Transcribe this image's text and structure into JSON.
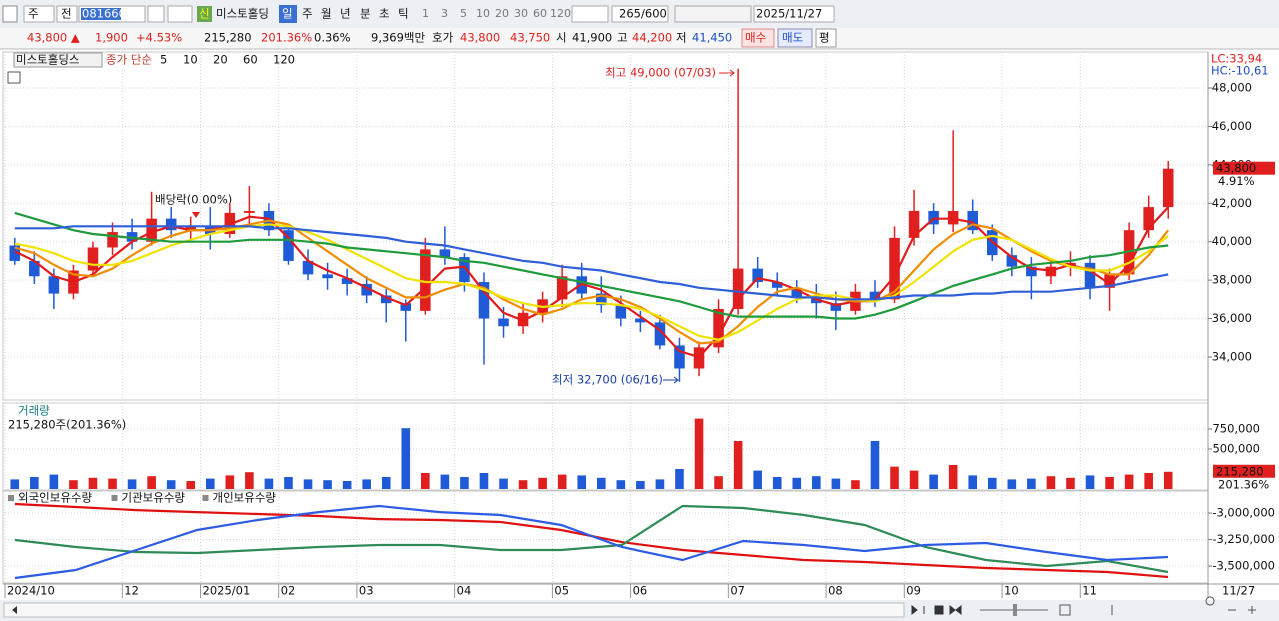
{
  "toolbar": {
    "market": "주",
    "exchange": "전",
    "code": "081660",
    "badge": "신",
    "name": "미스토홀딩",
    "periods": [
      "일",
      "주",
      "월",
      "년",
      "분",
      "초",
      "틱"
    ],
    "intervals": [
      "1",
      "3",
      "5",
      "10",
      "20",
      "30",
      "60",
      "120"
    ],
    "count": "265",
    "max": "/600",
    "date": "2025/11/27"
  },
  "quote_bar": {
    "price": "43,800 ▲",
    "change": "1,900",
    "change_pct": "+4.53%",
    "volume": "215,280",
    "volume_ratio": "201.36%",
    "turnover": "0.36%",
    "amount": "9,369백만",
    "ask_label": "호가",
    "ask": "43,800",
    "bid": "43,750",
    "open_label": "시",
    "open": "41,900",
    "high_label": "고",
    "high": "44,200",
    "low_label": "저",
    "low": "41,450",
    "buy": "매수",
    "sell": "매도",
    "avg": "평"
  },
  "chart_data": [
    {
      "type": "candlestick",
      "title": "미스토홀딩스",
      "legend_label": "종가 단순",
      "categories": [
        "2024/10",
        null,
        null,
        null,
        null,
        null,
        "12",
        null,
        null,
        null,
        "2025/01",
        null,
        null,
        null,
        "02",
        null,
        null,
        null,
        "03",
        null,
        null,
        null,
        null,
        "04",
        null,
        null,
        null,
        null,
        "05",
        null,
        null,
        null,
        "06",
        null,
        null,
        null,
        null,
        "07",
        null,
        null,
        null,
        null,
        "08",
        null,
        null,
        null,
        "09",
        null,
        null,
        null,
        null,
        "10",
        null,
        null,
        null,
        "11",
        null,
        null,
        null,
        null
      ],
      "open": [
        39800,
        39000,
        38200,
        37300,
        38500,
        39700,
        40500,
        40000,
        41200,
        40600,
        40800,
        40400,
        41500,
        41600,
        40600,
        39000,
        38300,
        38100,
        37800,
        37200,
        36800,
        36400,
        39600,
        39200,
        37900,
        36000,
        35600,
        36300,
        37000,
        38200,
        37300,
        36700,
        36000,
        35800,
        34600,
        33400,
        34500,
        36500,
        38600,
        37900,
        37600,
        37100,
        36800,
        36400,
        37400,
        37000,
        40200,
        41600,
        40900,
        41600,
        40600,
        39300,
        38700,
        38200,
        38700,
        38900,
        37600,
        38300,
        40600,
        41800
      ],
      "high": [
        40200,
        39500,
        38600,
        38800,
        40000,
        41000,
        41200,
        42600,
        41800,
        41300,
        41800,
        42000,
        42900,
        42000,
        40800,
        39600,
        38900,
        38600,
        38200,
        37600,
        37000,
        40200,
        40800,
        39400,
        38400,
        36600,
        36800,
        37400,
        38800,
        38900,
        38200,
        37200,
        36400,
        36200,
        35000,
        34800,
        37000,
        49000,
        39200,
        38400,
        38000,
        37800,
        37400,
        37800,
        38000,
        40800,
        42700,
        42000,
        45800,
        42200,
        40900,
        39700,
        39200,
        39000,
        39500,
        39300,
        38600,
        41000,
        42400,
        44200
      ],
      "low": [
        38800,
        37800,
        36500,
        37000,
        38200,
        39300,
        39600,
        39800,
        40200,
        40000,
        39600,
        40200,
        40800,
        40300,
        38800,
        38000,
        37500,
        37200,
        36800,
        35800,
        34800,
        36200,
        38800,
        37400,
        33600,
        35000,
        35200,
        35800,
        36600,
        37000,
        36300,
        35600,
        35300,
        34400,
        32700,
        33000,
        34200,
        36200,
        37600,
        37200,
        36800,
        36000,
        35400,
        36200,
        36600,
        36800,
        39800,
        40400,
        40500,
        40400,
        39000,
        38200,
        37000,
        37800,
        38200,
        37000,
        36400,
        38000,
        40200,
        41200
      ],
      "close": [
        39000,
        38200,
        37300,
        38500,
        39700,
        40500,
        40000,
        41200,
        40600,
        40800,
        40400,
        41500,
        41600,
        40600,
        39000,
        38300,
        38100,
        37800,
        37200,
        36800,
        36400,
        39600,
        39200,
        37900,
        36000,
        35600,
        36300,
        37000,
        38200,
        37300,
        36700,
        36000,
        35800,
        34600,
        33400,
        34500,
        36500,
        38600,
        37900,
        37600,
        37100,
        36800,
        36400,
        37400,
        37000,
        40200,
        41600,
        40900,
        41600,
        40600,
        39300,
        38700,
        38200,
        38700,
        38900,
        37600,
        38300,
        40600,
        41800,
        43800
      ],
      "up_color": "#e0201e",
      "down_color": "#1f5bd6",
      "series": [
        {
          "name": "5",
          "color": "#e31a1c",
          "values": [
            39500,
            39000,
            38200,
            37900,
            38300,
            39200,
            40000,
            40500,
            40800,
            40600,
            40600,
            40900,
            41300,
            41200,
            40200,
            39000,
            38500,
            38100,
            37600,
            37100,
            36700,
            37600,
            38600,
            38700,
            37400,
            36300,
            35900,
            36400,
            37100,
            37800,
            37500,
            36800,
            36100,
            35400,
            34300,
            34000,
            35100,
            37000,
            38100,
            37900,
            37500,
            37000,
            36700,
            36900,
            37000,
            38200,
            40300,
            41200,
            41200,
            41000,
            40000,
            39200,
            38600,
            38500,
            38800,
            38500,
            37800,
            38800,
            40700,
            41800
          ]
        },
        {
          "name": "10",
          "color": "#f08c00",
          "values": [
            39700,
            39400,
            38800,
            38300,
            38200,
            38600,
            39300,
            39900,
            40300,
            40600,
            40600,
            40700,
            40900,
            41100,
            40900,
            40200,
            39500,
            38800,
            38100,
            37600,
            37100,
            37100,
            37500,
            37800,
            37600,
            37000,
            36500,
            36200,
            36500,
            37000,
            37200,
            37000,
            36600,
            36000,
            35300,
            34700,
            34800,
            35600,
            36600,
            37400,
            37600,
            37300,
            37000,
            36900,
            36900,
            37400,
            38500,
            39600,
            40400,
            40900,
            40700,
            40100,
            39500,
            39000,
            38700,
            38600,
            38300,
            38300,
            39300,
            40600
          ]
        },
        {
          "name": "20",
          "color": "#f2e200",
          "values": [
            39900,
            39700,
            39400,
            39000,
            38800,
            38800,
            39000,
            39400,
            39800,
            40100,
            40400,
            40600,
            40800,
            40900,
            40800,
            40500,
            40100,
            39600,
            39100,
            38600,
            38100,
            37900,
            37900,
            37800,
            37500,
            37100,
            36800,
            36600,
            36700,
            36800,
            36800,
            36700,
            36500,
            36100,
            35600,
            35100,
            34900,
            35300,
            35900,
            36500,
            37000,
            37200,
            37200,
            37000,
            36900,
            37200,
            37900,
            38700,
            39500,
            40100,
            40300,
            40100,
            39600,
            39100,
            38700,
            38500,
            38500,
            38900,
            39500,
            40300
          ]
        },
        {
          "name": "60",
          "color": "#1f9a3c",
          "values": [
            41500,
            41200,
            40900,
            40600,
            40400,
            40300,
            40200,
            40100,
            40000,
            40000,
            40000,
            40000,
            40100,
            40100,
            40100,
            40000,
            39900,
            39700,
            39600,
            39500,
            39400,
            39300,
            39200,
            39000,
            38900,
            38700,
            38500,
            38300,
            38100,
            37900,
            37700,
            37500,
            37300,
            37100,
            36900,
            36600,
            36300,
            36100,
            36100,
            36100,
            36100,
            36100,
            36000,
            36000,
            36200,
            36500,
            36900,
            37300,
            37700,
            38000,
            38300,
            38600,
            38800,
            38900,
            39000,
            39200,
            39300,
            39500,
            39700,
            39800
          ]
        },
        {
          "name": "120",
          "color": "#2f5fd8",
          "values": [
            40700,
            40700,
            40700,
            40800,
            40800,
            40800,
            40800,
            40800,
            40800,
            40800,
            40800,
            40800,
            40800,
            40700,
            40700,
            40600,
            40500,
            40400,
            40300,
            40200,
            40000,
            39900,
            39800,
            39600,
            39400,
            39200,
            39000,
            38900,
            38700,
            38600,
            38500,
            38300,
            38100,
            37900,
            37800,
            37600,
            37500,
            37400,
            37300,
            37200,
            37100,
            37100,
            37000,
            37000,
            37000,
            37100,
            37200,
            37200,
            37200,
            37300,
            37300,
            37400,
            37400,
            37400,
            37500,
            37600,
            37700,
            37900,
            38100,
            38300
          ]
        }
      ],
      "ylim": [
        31760,
        49875
      ],
      "yticks": [
        {
          "value": 34000,
          "label": "34,000"
        },
        {
          "value": 36000,
          "label": "36,000"
        },
        {
          "value": 38000,
          "label": "38,000"
        },
        {
          "value": 40000,
          "label": "40,000"
        },
        {
          "value": 42000,
          "label": "42,000"
        },
        {
          "value": 44000,
          "label": "44,000"
        },
        {
          "value": 46000,
          "label": "46,000"
        },
        {
          "value": 48000,
          "label": "48,000"
        }
      ],
      "grid": true,
      "annotations": {
        "high": "최고 49,000 (07/03)",
        "low": "최저 32,700 (06/16)",
        "dividend": "배당락(0.00%)"
      },
      "lc": "LC:33,94",
      "hc": "HC:-10,61",
      "last_marker": {
        "value": 43800,
        "label": "43,800"
      },
      "last_change": "4.91%",
      "last_date": "11/27"
    },
    {
      "type": "bar",
      "title": "거래량",
      "subtitle": "215,280주(201.36%)",
      "values": [
        120000,
        150000,
        180000,
        110000,
        140000,
        130000,
        120000,
        160000,
        110000,
        100000,
        130000,
        170000,
        210000,
        130000,
        150000,
        120000,
        110000,
        100000,
        120000,
        150000,
        760000,
        200000,
        180000,
        150000,
        200000,
        130000,
        110000,
        140000,
        180000,
        170000,
        140000,
        110000,
        100000,
        120000,
        250000,
        880000,
        160000,
        600000,
        230000,
        150000,
        140000,
        160000,
        130000,
        110000,
        600000,
        280000,
        230000,
        180000,
        300000,
        170000,
        140000,
        120000,
        130000,
        160000,
        140000,
        170000,
        150000,
        180000,
        200000,
        215280
      ],
      "ylim": [
        0,
        1050000
      ],
      "yticks": [
        {
          "value": 500000,
          "label": "500,000"
        },
        {
          "value": 750000,
          "label": "750,000"
        }
      ],
      "last_marker": {
        "value": 215280,
        "label": "215,280"
      },
      "last_change": "201.36%"
    },
    {
      "type": "line",
      "series": [
        {
          "name": "외국인보유수량",
          "color": "#e01010",
          "values": [
            -2915000,
            -2943000,
            -2972000,
            -2991000,
            -3009000,
            -3028000,
            -3057000,
            -3066000,
            -3085000,
            -3160000,
            -3274000,
            -3349000,
            -3396000,
            -3443000,
            -3462000,
            -3491000,
            -3519000,
            -3538000,
            -3557000,
            -3604000
          ]
        },
        {
          "name": "기관보유수량",
          "color": "#2e8b57",
          "values": [
            -3255000,
            -3321000,
            -3368000,
            -3377000,
            -3349000,
            -3321000,
            -3302000,
            -3302000,
            -3349000,
            -3349000,
            -3302000,
            -2934000,
            -2953000,
            -3019000,
            -3113000,
            -3321000,
            -3443000,
            -3500000,
            -3453000,
            -3557000
          ]
        },
        {
          "name": "개인보유수량",
          "color": "#2d5be3",
          "values": [
            -3613000,
            -3538000,
            -3349000,
            -3160000,
            -3066000,
            -2991000,
            -2934000,
            -2991000,
            -3019000,
            -3113000,
            -3321000,
            -3443000,
            -3264000,
            -3302000,
            -3358000,
            -3302000,
            -3283000,
            -3368000,
            -3443000,
            -3415000
          ]
        }
      ],
      "ylim": [
        -3651000,
        -2811000
      ],
      "yticks": [
        {
          "value": -3500000,
          "label": "-3,500,000"
        },
        {
          "value": -3250000,
          "label": "-3,250,000"
        },
        {
          "value": -3000000,
          "label": "-3,000,000"
        }
      ]
    }
  ]
}
